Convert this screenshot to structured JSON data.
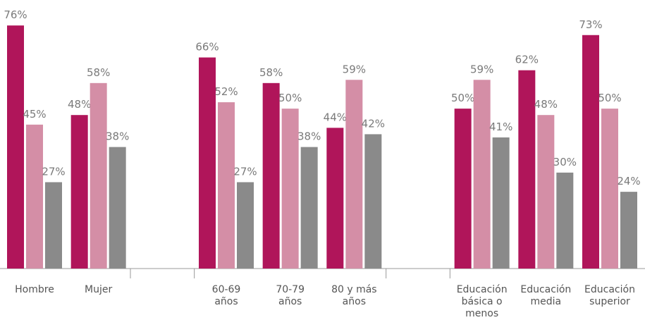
{
  "chart_data": {
    "type": "bar",
    "categories": [
      "Hombre",
      "Mujer",
      null,
      "60-69\naños",
      "70-79\naños",
      "80 y más\naños",
      null,
      "Educación\nbásica o\nmenos",
      "Educación\nmedia",
      "Educación\nsuperior"
    ],
    "series": [
      {
        "color": "#b0155a",
        "values": [
          76,
          48,
          null,
          66,
          58,
          44,
          null,
          50,
          62,
          73
        ],
        "value_labels": [
          "76%",
          "48%",
          null,
          "66%",
          "58%",
          "44%",
          null,
          "50%",
          "62%",
          "73%"
        ]
      },
      {
        "color": "#d48ea6",
        "values": [
          45,
          58,
          null,
          52,
          50,
          59,
          null,
          59,
          48,
          50
        ],
        "value_labels": [
          "45%",
          "58%",
          null,
          "52%",
          "50%",
          "59%",
          null,
          "59%",
          "48%",
          "50%"
        ]
      },
      {
        "color": "#8a8a8a",
        "values": [
          27,
          38,
          null,
          27,
          38,
          42,
          null,
          41,
          30,
          24
        ],
        "value_labels": [
          "27%",
          "38%",
          null,
          "27%",
          "38%",
          "42%",
          null,
          "41%",
          "30%",
          "24%"
        ]
      }
    ],
    "ylim": [
      0,
      80
    ]
  }
}
